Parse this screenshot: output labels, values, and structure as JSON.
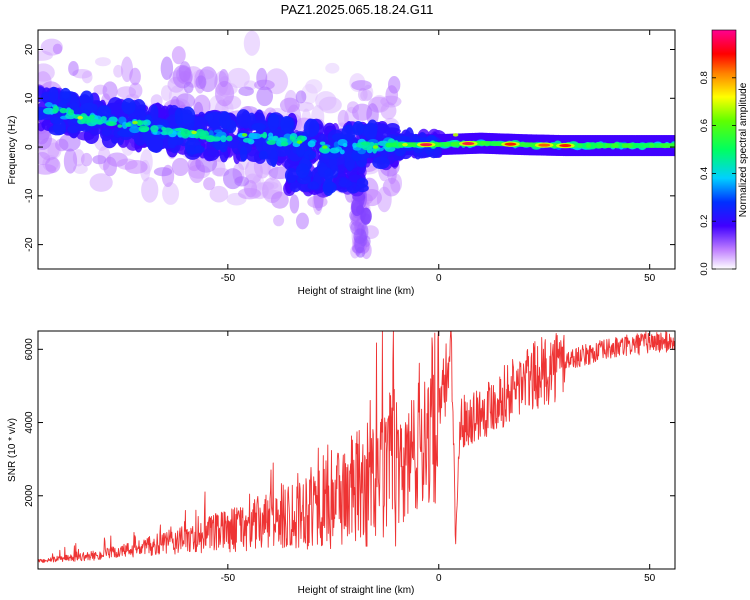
{
  "title": "PAZ1.2025.065.18.24.G11",
  "chart_data": [
    {
      "type": "heatmap",
      "title": "PAZ1.2025.065.18.24.G11",
      "xlabel": "Height of straight line (km)",
      "ylabel": "Frequency (Hz)",
      "xlim": [
        -95,
        56
      ],
      "ylim": [
        -25,
        24
      ],
      "x_ticks": [
        -50,
        0,
        50
      ],
      "x_tick_labels": [
        "-50",
        "0",
        "50"
      ],
      "y_ticks": [
        -20,
        -10,
        0,
        10,
        20
      ],
      "y_tick_labels": [
        "-20",
        "-10",
        "0",
        "10",
        "20"
      ],
      "colorbar": {
        "label": "Normalized spectral amplitude",
        "range": [
          0,
          1
        ],
        "ticks": [
          0,
          0.2,
          0.4,
          0.6,
          0.8
        ],
        "tick_labels": [
          "0.0",
          "0.2",
          "0.4",
          "0.6",
          "0.8"
        ],
        "colormap": [
          "#ffffff",
          "#7f00ff",
          "#0000ff",
          "#00ffff",
          "#00ff00",
          "#ffff00",
          "#ff0000",
          "#ff00aa"
        ]
      },
      "ridge": {
        "description_points_x": [
          -93,
          -85,
          -75,
          -65,
          -55,
          -45,
          -35,
          -28,
          -20,
          -10,
          0,
          10,
          20,
          30,
          40,
          50,
          56
        ],
        "description_points_freq": [
          8,
          6,
          5,
          3.5,
          2.5,
          2,
          1.5,
          0,
          0,
          0.5,
          0.5,
          0.8,
          0.5,
          0.3,
          0.3,
          0.3,
          0.3
        ],
        "peak_amplitude_points_x": [
          -3,
          7,
          17,
          25,
          30
        ],
        "peak_amplitude_values": [
          0.95,
          0.95,
          0.9,
          0.85,
          0.9
        ]
      },
      "grid": false,
      "legend": "none"
    },
    {
      "type": "line",
      "xlabel": "Height of straight line (km)",
      "ylabel": "SNR (10 * v/v)",
      "xlim": [
        -95,
        56
      ],
      "ylim": [
        0,
        6500
      ],
      "x_ticks": [
        -50,
        0,
        50
      ],
      "x_tick_labels": [
        "-50",
        "0",
        "50"
      ],
      "y_ticks": [
        2000,
        4000,
        6000
      ],
      "y_tick_labels": [
        "2000",
        "4000",
        "6000"
      ],
      "color": "#ee3333",
      "trend_x": [
        -95,
        -80,
        -60,
        -40,
        -25,
        -15,
        -10,
        -5,
        0,
        2,
        3,
        4,
        5,
        10,
        20,
        30,
        40,
        50,
        56
      ],
      "trend_y": [
        200,
        350,
        700,
        1100,
        1600,
        1900,
        2300,
        3500,
        4200,
        5300,
        6500,
        600,
        4000,
        4300,
        5100,
        5700,
        6000,
        6200,
        6200
      ],
      "grid": false,
      "legend": "none"
    }
  ]
}
